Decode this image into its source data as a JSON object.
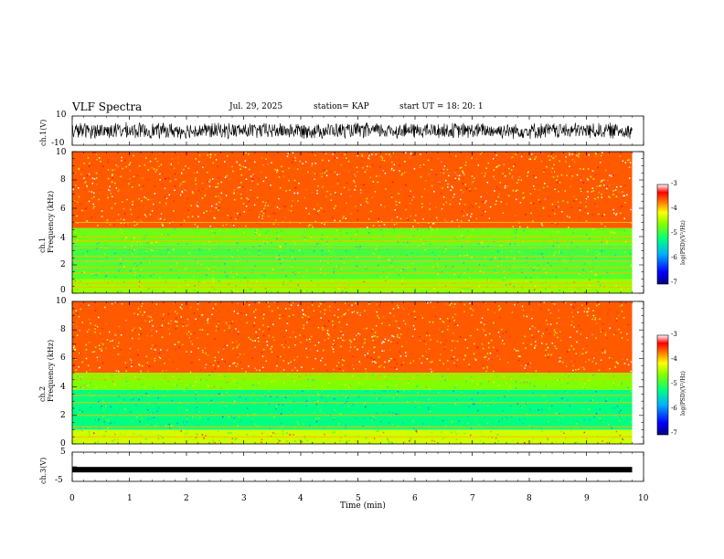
{
  "header": {
    "title": "VLF Spectra",
    "date": "Jul. 29, 2025",
    "station": "station= KAP",
    "start": "start UT =  18: 20: 1"
  },
  "chart_data": [
    {
      "type": "line",
      "name": "ch1-waveform",
      "ylabel": "ch.1(V)",
      "ylim": [
        -10,
        10
      ],
      "yticks": [
        "10",
        "-10"
      ],
      "xlim": [
        0,
        10
      ],
      "approx_amplitude": [
        -6,
        6
      ],
      "data_end_min": 9.8
    },
    {
      "type": "heatmap",
      "name": "ch1-spectrogram",
      "ylabel": "ch.1\nFrequency (kHz)",
      "ylim": [
        0,
        10
      ],
      "yticks": [
        "0",
        "2",
        "4",
        "6",
        "8",
        "10"
      ],
      "xlim": [
        0,
        10
      ],
      "colorbar": {
        "label": "log(PSD)(V²/Hz)",
        "range": [
          -7,
          -3
        ],
        "ticks": [
          "-3",
          "-4",
          "-5",
          "-6",
          "-7"
        ]
      },
      "bands_khz": [
        {
          "from": 0,
          "to": 1.0,
          "level": -4.5
        },
        {
          "from": 1.0,
          "to": 2.2,
          "level": -4.8
        },
        {
          "from": 2.2,
          "to": 3.4,
          "level": -4.9
        },
        {
          "from": 3.4,
          "to": 4.6,
          "level": -4.7
        },
        {
          "from": 4.6,
          "to": 10,
          "level": -3.6
        }
      ],
      "lines_khz": [
        0.4,
        0.7,
        1.4,
        1.8,
        2.3,
        2.6,
        3.2,
        3.7,
        4.0,
        5.0
      ]
    },
    {
      "type": "heatmap",
      "name": "ch2-spectrogram",
      "ylabel": "ch.2\nFrequency (kHz)",
      "ylim": [
        0,
        10
      ],
      "yticks": [
        "0",
        "2",
        "4",
        "6",
        "8",
        "10"
      ],
      "xlim": [
        0,
        10
      ],
      "colorbar": {
        "label": "log(PSD)(V²/Hz)",
        "range": [
          -7,
          -3
        ],
        "ticks": [
          "-3",
          "-4",
          "-5",
          "-6",
          "-7"
        ]
      },
      "bands_khz": [
        {
          "from": 0,
          "to": 1.0,
          "level": -4.3
        },
        {
          "from": 1.0,
          "to": 3.8,
          "level": -5.2
        },
        {
          "from": 3.8,
          "to": 5.0,
          "level": -4.6
        },
        {
          "from": 5.0,
          "to": 10,
          "level": -3.6
        }
      ],
      "lines_khz": [
        0.5,
        1.2,
        2.0,
        2.9,
        3.4,
        4.6,
        4.9
      ]
    },
    {
      "type": "line",
      "name": "ch3-waveform",
      "ylabel": "ch.3(V)",
      "ylim": [
        -5,
        5
      ],
      "yticks": [
        "5",
        "0",
        "-5"
      ],
      "xlim": [
        0,
        10
      ],
      "constant_level": -1,
      "data_end_min": 9.8
    }
  ],
  "xaxis": {
    "label": "Time (min)",
    "ticks": [
      "0",
      "1",
      "2",
      "3",
      "4",
      "5",
      "6",
      "7",
      "8",
      "9",
      "10"
    ]
  }
}
